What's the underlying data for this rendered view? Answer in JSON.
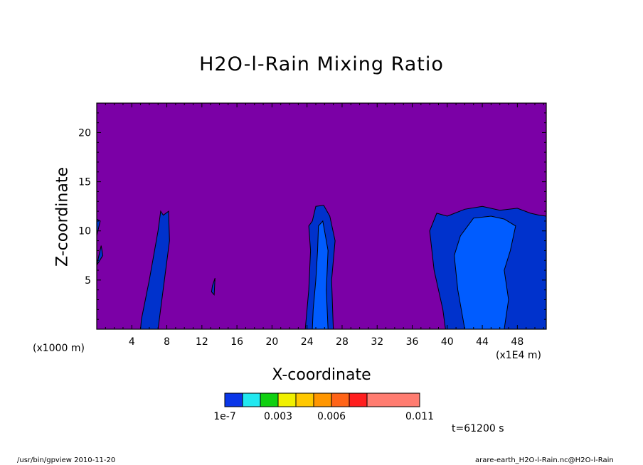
{
  "title": "H2O-l-Rain Mixing Ratio",
  "footer_left": "/usr/bin/gpview  2010-11-20",
  "footer_right": "arare-earth_H2O-l-Rain.nc@H2O-l-Rain",
  "time_label": "t=61200 s",
  "colors": {
    "background_level": "#7b00a6",
    "level1": "#0032cc",
    "level2": "#005cff",
    "colorbar": [
      "#0a36e8",
      "#22e8f0",
      "#10d010",
      "#f0f000",
      "#ffc800",
      "#ff9600",
      "#ff6418",
      "#ff1e1e",
      "#ff7c70"
    ]
  },
  "chart_data": {
    "type": "heatmap",
    "title": "H2O-l-Rain Mixing Ratio",
    "xlabel": "X-coordinate",
    "ylabel": "Z-coordinate",
    "x_scale_label": "(x1000 m)",
    "x_unit_label": "(x1E4 m)",
    "xlim": [
      0,
      51.3
    ],
    "ylim": [
      0,
      23
    ],
    "x_ticks": [
      4,
      8,
      12,
      16,
      20,
      24,
      28,
      32,
      36,
      40,
      44,
      48
    ],
    "y_ticks": [
      5,
      10,
      15,
      20
    ],
    "colorbar": {
      "labels": [
        {
          "text": "1e-7",
          "value": 0
        },
        {
          "text": "0.003",
          "value": 0.003
        },
        {
          "text": "0.006",
          "value": 0.006
        },
        {
          "text": "0.011",
          "value": 0.011
        }
      ],
      "n_levels": 9
    },
    "features": [
      {
        "level": 1,
        "points": [
          [
            5.0,
            0
          ],
          [
            7.0,
            0
          ],
          [
            8.3,
            9
          ],
          [
            8.2,
            12
          ],
          [
            7.6,
            11.6
          ],
          [
            7.3,
            12
          ],
          [
            7.0,
            10
          ],
          [
            6.0,
            5
          ],
          [
            5.1,
            1
          ]
        ]
      },
      {
        "level": 1,
        "points": [
          [
            0,
            6.5
          ],
          [
            0.5,
            8.5
          ],
          [
            0.7,
            7.5
          ],
          [
            0,
            6.5
          ]
        ]
      },
      {
        "level": 1,
        "points": [
          [
            0,
            9.5
          ],
          [
            0.4,
            11
          ],
          [
            0,
            11.2
          ]
        ]
      },
      {
        "level": 1,
        "points": [
          [
            13.2,
            4.4
          ],
          [
            13.5,
            5.2
          ],
          [
            13.4,
            3.5
          ],
          [
            13.1,
            3.8
          ]
        ]
      },
      {
        "level": 1,
        "points": [
          [
            23.8,
            0
          ],
          [
            27.0,
            0
          ],
          [
            26.8,
            5
          ],
          [
            27.2,
            9
          ],
          [
            26.6,
            11.5
          ],
          [
            25.9,
            12.6
          ],
          [
            25.0,
            12.5
          ],
          [
            24.6,
            11
          ],
          [
            24.2,
            10.5
          ],
          [
            24.4,
            8
          ],
          [
            24.2,
            4
          ]
        ]
      },
      {
        "level": 2,
        "points": [
          [
            24.6,
            0
          ],
          [
            26.4,
            0
          ],
          [
            26.2,
            4
          ],
          [
            26.4,
            8
          ],
          [
            26.0,
            10
          ],
          [
            25.8,
            11
          ],
          [
            25.3,
            10.5
          ],
          [
            25.2,
            8
          ],
          [
            25.0,
            5
          ],
          [
            24.7,
            2
          ]
        ]
      },
      {
        "level": 1,
        "points": [
          [
            39.8,
            0
          ],
          [
            51.3,
            0
          ],
          [
            51.3,
            11.5
          ],
          [
            50.5,
            11.6
          ],
          [
            49.5,
            11.8
          ],
          [
            48,
            12.3
          ],
          [
            46,
            12.1
          ],
          [
            44,
            12.5
          ],
          [
            42,
            12.2
          ],
          [
            40,
            11.5
          ],
          [
            38.8,
            11.8
          ],
          [
            38.0,
            10
          ],
          [
            38.5,
            6
          ],
          [
            39.5,
            2
          ]
        ]
      },
      {
        "level": 2,
        "points": [
          [
            42.0,
            0
          ],
          [
            46.5,
            0
          ],
          [
            47.0,
            3
          ],
          [
            46.5,
            6
          ],
          [
            47.2,
            8
          ],
          [
            47.8,
            10.5
          ],
          [
            46.5,
            11.2
          ],
          [
            45,
            11.5
          ],
          [
            43,
            11.3
          ],
          [
            41.5,
            9.5
          ],
          [
            40.8,
            7.5
          ],
          [
            41.2,
            4
          ],
          [
            41.8,
            1
          ]
        ]
      }
    ]
  }
}
